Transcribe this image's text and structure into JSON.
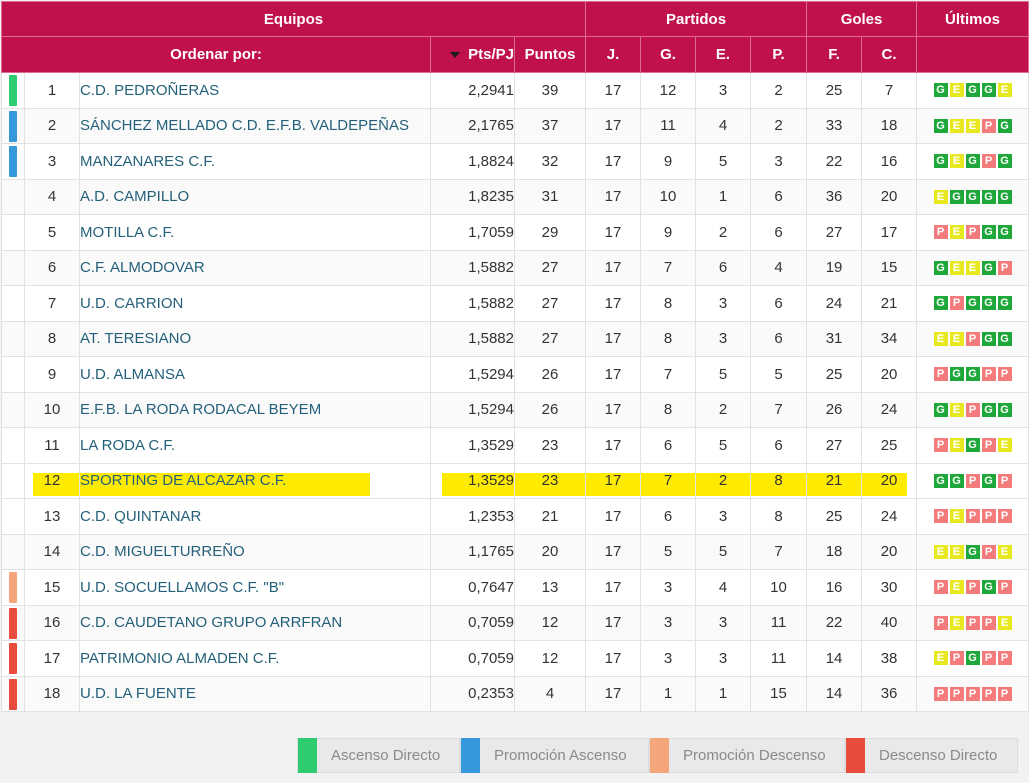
{
  "headers": {
    "equipos": "Equipos",
    "partidos": "Partidos",
    "goles": "Goles",
    "ultimos": "Últimos",
    "ordenar": "Ordenar por:",
    "ptspj": "Pts/PJ",
    "puntos": "Puntos",
    "j": "J.",
    "g": "G.",
    "e": "E.",
    "p": "P.",
    "f": "F.",
    "c": "C."
  },
  "colors": {
    "header_bg": "#c0114d",
    "highlight": "#ffeb00",
    "team_link": "#24607a",
    "form": {
      "G": "#1ea839",
      "E": "#e7e820",
      "P": "#f37b7b"
    },
    "zones": {
      "ascenso": "#2ecc71",
      "promocion_ascenso": "#3498db",
      "promocion_descenso": "#f4a57a",
      "descenso": "#e74c3c"
    }
  },
  "rows": [
    {
      "pos": "1",
      "team": "C.D. PEDROÑERAS",
      "ppj": "2,2941",
      "pts": "39",
      "j": "17",
      "g": "12",
      "e": "3",
      "p": "2",
      "f": "25",
      "c": "7",
      "form": "GEGGE",
      "zone": "ascenso"
    },
    {
      "pos": "2",
      "team": "SÁNCHEZ MELLADO C.D. E.F.B. VALDEPEÑAS",
      "ppj": "2,1765",
      "pts": "37",
      "j": "17",
      "g": "11",
      "e": "4",
      "p": "2",
      "f": "33",
      "c": "18",
      "form": "GEEPG",
      "zone": "promocion_ascenso"
    },
    {
      "pos": "3",
      "team": "MANZANARES C.F.",
      "ppj": "1,8824",
      "pts": "32",
      "j": "17",
      "g": "9",
      "e": "5",
      "p": "3",
      "f": "22",
      "c": "16",
      "form": "GEGPG",
      "zone": "promocion_ascenso"
    },
    {
      "pos": "4",
      "team": "A.D. CAMPILLO",
      "ppj": "1,8235",
      "pts": "31",
      "j": "17",
      "g": "10",
      "e": "1",
      "p": "6",
      "f": "36",
      "c": "20",
      "form": "EGGGG",
      "zone": ""
    },
    {
      "pos": "5",
      "team": "MOTILLA C.F.",
      "ppj": "1,7059",
      "pts": "29",
      "j": "17",
      "g": "9",
      "e": "2",
      "p": "6",
      "f": "27",
      "c": "17",
      "form": "PEPGG",
      "zone": ""
    },
    {
      "pos": "6",
      "team": "C.F. ALMODOVAR",
      "ppj": "1,5882",
      "pts": "27",
      "j": "17",
      "g": "7",
      "e": "6",
      "p": "4",
      "f": "19",
      "c": "15",
      "form": "GEEGP",
      "zone": ""
    },
    {
      "pos": "7",
      "team": "U.D. CARRION",
      "ppj": "1,5882",
      "pts": "27",
      "j": "17",
      "g": "8",
      "e": "3",
      "p": "6",
      "f": "24",
      "c": "21",
      "form": "GPGGG",
      "zone": ""
    },
    {
      "pos": "8",
      "team": "AT. TERESIANO",
      "ppj": "1,5882",
      "pts": "27",
      "j": "17",
      "g": "8",
      "e": "3",
      "p": "6",
      "f": "31",
      "c": "34",
      "form": "EEPGG",
      "zone": ""
    },
    {
      "pos": "9",
      "team": "U.D. ALMANSA",
      "ppj": "1,5294",
      "pts": "26",
      "j": "17",
      "g": "7",
      "e": "5",
      "p": "5",
      "f": "25",
      "c": "20",
      "form": "PGGPP",
      "zone": ""
    },
    {
      "pos": "10",
      "team": "E.F.B. LA RODA RODACAL BEYEM",
      "ppj": "1,5294",
      "pts": "26",
      "j": "17",
      "g": "8",
      "e": "2",
      "p": "7",
      "f": "26",
      "c": "24",
      "form": "GEPGG",
      "zone": ""
    },
    {
      "pos": "11",
      "team": "LA RODA C.F.",
      "ppj": "1,3529",
      "pts": "23",
      "j": "17",
      "g": "6",
      "e": "5",
      "p": "6",
      "f": "27",
      "c": "25",
      "form": "PEGPE",
      "zone": ""
    },
    {
      "pos": "12",
      "team": "SPORTING DE ALCAZAR C.F.",
      "ppj": "1,3529",
      "pts": "23",
      "j": "17",
      "g": "7",
      "e": "2",
      "p": "8",
      "f": "21",
      "c": "20",
      "form": "GGPGP",
      "zone": "",
      "highlight": true
    },
    {
      "pos": "13",
      "team": "C.D. QUINTANAR",
      "ppj": "1,2353",
      "pts": "21",
      "j": "17",
      "g": "6",
      "e": "3",
      "p": "8",
      "f": "25",
      "c": "24",
      "form": "PEPPP",
      "zone": ""
    },
    {
      "pos": "14",
      "team": "C.D. MIGUELTURREÑO",
      "ppj": "1,1765",
      "pts": "20",
      "j": "17",
      "g": "5",
      "e": "5",
      "p": "7",
      "f": "18",
      "c": "20",
      "form": "EEGPE",
      "zone": ""
    },
    {
      "pos": "15",
      "team": "U.D. SOCUELLAMOS C.F. \"B\"",
      "ppj": "0,7647",
      "pts": "13",
      "j": "17",
      "g": "3",
      "e": "4",
      "p": "10",
      "f": "16",
      "c": "30",
      "form": "PEPGP",
      "zone": "promocion_descenso"
    },
    {
      "pos": "16",
      "team": "C.D. CAUDETANO GRUPO ARRFRAN",
      "ppj": "0,7059",
      "pts": "12",
      "j": "17",
      "g": "3",
      "e": "3",
      "p": "11",
      "f": "22",
      "c": "40",
      "form": "PEPPE",
      "zone": "descenso"
    },
    {
      "pos": "17",
      "team": "PATRIMONIO ALMADEN C.F.",
      "ppj": "0,7059",
      "pts": "12",
      "j": "17",
      "g": "3",
      "e": "3",
      "p": "11",
      "f": "14",
      "c": "38",
      "form": "EPGPP",
      "zone": "descenso"
    },
    {
      "pos": "18",
      "team": "U.D. LA FUENTE",
      "ppj": "0,2353",
      "pts": "4",
      "j": "17",
      "g": "1",
      "e": "1",
      "p": "15",
      "f": "14",
      "c": "36",
      "form": "PPPPP",
      "zone": "descenso"
    }
  ],
  "legend": [
    {
      "label": "Ascenso Directo",
      "zone": "ascenso"
    },
    {
      "label": "Promoción Ascenso",
      "zone": "promocion_ascenso"
    },
    {
      "label": "Promoción Descenso",
      "zone": "promocion_descenso"
    },
    {
      "label": "Descenso Directo",
      "zone": "descenso"
    }
  ]
}
